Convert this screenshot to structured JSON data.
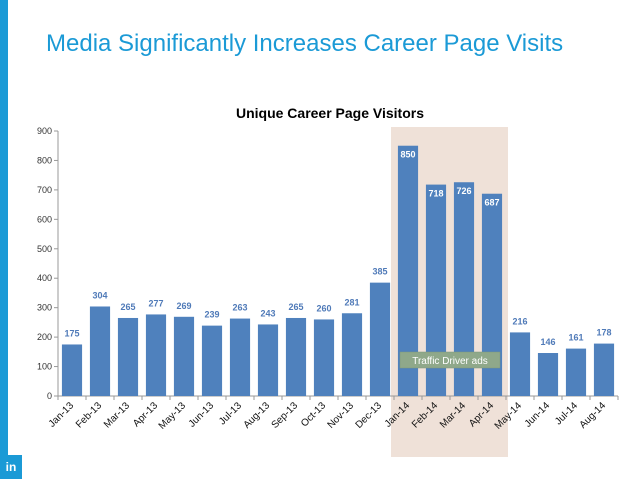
{
  "slide": {
    "title": "Media Significantly Increases Career Page Visits",
    "logo_text": "in"
  },
  "colors": {
    "accent": "#1b9ad6",
    "bar": "#4f81bd",
    "label": "#4f7ab8",
    "highlight": "#efe1d8",
    "annotation": "#8fa88a"
  },
  "chart_data": {
    "type": "bar",
    "title": "Unique Career Page Visitors",
    "xlabel": "",
    "ylabel": "",
    "ylim": [
      0,
      900
    ],
    "yticks": [
      0,
      100,
      200,
      300,
      400,
      500,
      600,
      700,
      800,
      900
    ],
    "categories": [
      "Jan-13",
      "Feb-13",
      "Mar-13",
      "Apr-13",
      "May-13",
      "Jun-13",
      "Jul-13",
      "Aug-13",
      "Sep-13",
      "Oct-13",
      "Nov-13",
      "Dec-13",
      "Jan-14",
      "Feb-14",
      "Mar-14",
      "Apr-14",
      "May-14",
      "Jun-14",
      "Jul-14",
      "Aug-14"
    ],
    "values": [
      175,
      304,
      265,
      277,
      269,
      239,
      263,
      243,
      265,
      260,
      281,
      385,
      850,
      718,
      726,
      687,
      216,
      146,
      161,
      178
    ],
    "grid": false,
    "legend": "none",
    "annotation": {
      "text": "Traffic Driver ads",
      "categories": [
        "Jan-14",
        "Feb-14",
        "Mar-14",
        "Apr-14"
      ]
    }
  }
}
